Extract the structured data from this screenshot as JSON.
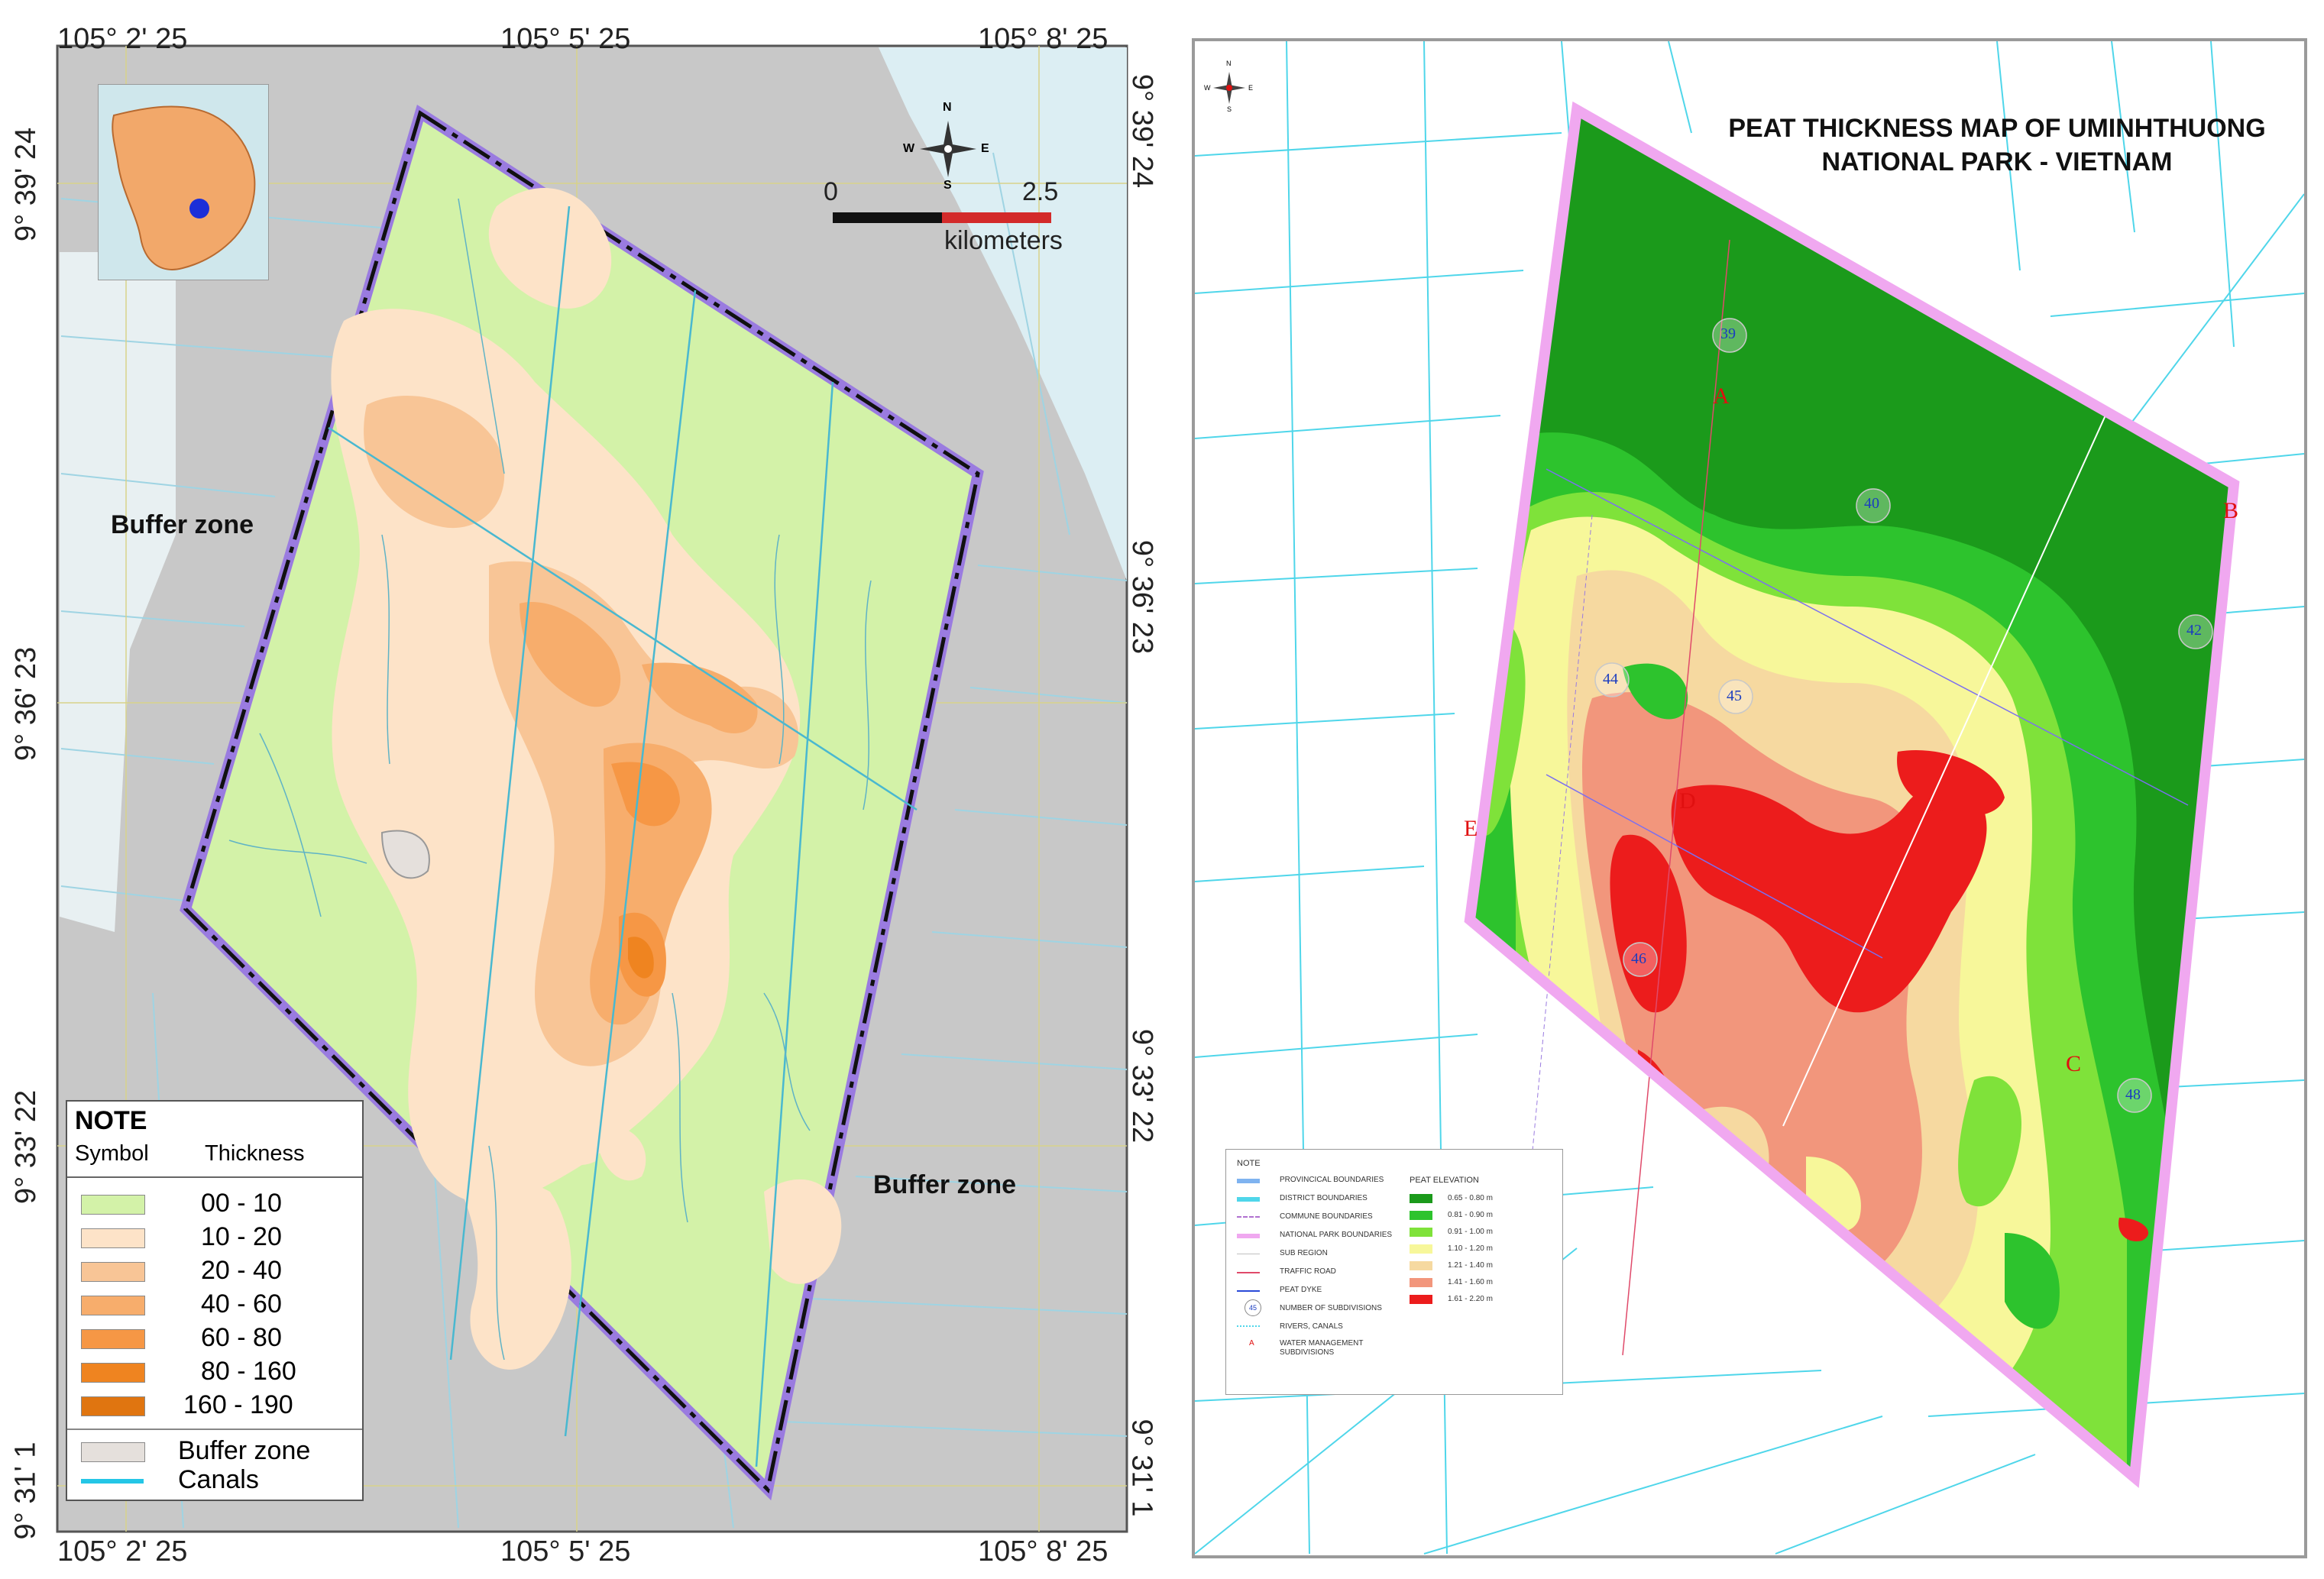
{
  "left_map": {
    "coords_top": [
      "105° 2' 25",
      "105° 5' 25",
      "105° 8' 25"
    ],
    "coords_bottom": [
      "105° 2' 25",
      "105° 5' 25",
      "105° 8' 25"
    ],
    "coords_left": [
      "9° 39' 24",
      "9° 36' 23",
      "9° 33' 22",
      "9° 31' 1"
    ],
    "coords_right": [
      "9° 39' 24",
      "9° 36' 23",
      "9° 33' 22",
      "9° 31' 1"
    ],
    "label_buffer_left": "Buffer zone",
    "label_buffer_right": "Buffer zone",
    "scale": {
      "start": "0",
      "end": "2.5",
      "unit": "kilometers"
    },
    "compass": {
      "n": "N",
      "s": "S",
      "e": "E",
      "w": "W"
    },
    "legend": {
      "title": "NOTE",
      "col_symbol": "Symbol",
      "col_thickness": "Thickness",
      "items": [
        {
          "label": "00 - 10",
          "color": "#d3f2a8"
        },
        {
          "label": "10 - 20",
          "color": "#fde3c8"
        },
        {
          "label": "20 - 40",
          "color": "#f8c596"
        },
        {
          "label": "40 - 60",
          "color": "#f7ad6c"
        },
        {
          "label": "60 - 80",
          "color": "#f69745"
        },
        {
          "label": "80 - 160",
          "color": "#ef8420"
        },
        {
          "label": "160 - 190",
          "color": "#e07510"
        }
      ],
      "buffer_label": "Buffer zone",
      "buffer_color": "#e5e0dc",
      "canals_label": "Canals",
      "canals_color": "#24c6e6"
    }
  },
  "right_map": {
    "title_line1": "PEAT THICKNESS MAP OF UMINHTHUONG",
    "title_line2": "NATIONAL PARK - VIETNAM",
    "compass": {
      "n": "N",
      "s": "S",
      "e": "E",
      "w": "W"
    },
    "letters": [
      "A",
      "B",
      "C",
      "D",
      "E"
    ],
    "subdivisions": [
      "39",
      "40",
      "42",
      "44",
      "45",
      "46",
      "48"
    ],
    "legend": {
      "title": "NOTE",
      "boundaries": [
        "PROVINCICAL BOUNDARIES",
        "DISTRICT BOUNDARIES",
        "COMMUNE BOUNDARIES",
        "NATIONAL PARK BOUNDARIES",
        "SUB REGION",
        "TRAFFIC ROAD",
        "PEAT DYKE",
        "NUMBER OF SUBDIVISIONS",
        "RIVERS, CANALS",
        "WATER MANAGEMENT SUBDIVISIONS"
      ],
      "subdiv_symbol": "45",
      "water_symbol": "A",
      "elevation_title": "PEAT ELEVATION",
      "elevation": [
        {
          "label": "0.65 - 0.80 m",
          "color": "#1b9a1b"
        },
        {
          "label": "0.81 - 0.90 m",
          "color": "#2dc32d"
        },
        {
          "label": "0.91 - 1.00 m",
          "color": "#7fe23a"
        },
        {
          "label": "1.10 - 1.20 m",
          "color": "#f7f79a"
        },
        {
          "label": "1.21 - 1.40 m",
          "color": "#f6d9a0"
        },
        {
          "label": "1.41 - 1.60 m",
          "color": "#f2967c"
        },
        {
          "label": "1.61 - 2.20 m",
          "color": "#ec1c1c"
        }
      ]
    }
  }
}
